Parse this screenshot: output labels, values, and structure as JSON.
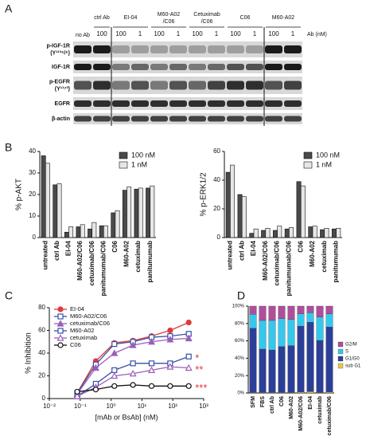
{
  "blot": {
    "panel": "A",
    "no_ab": "no Ab",
    "unit": "Ab (nM)",
    "groups": [
      {
        "name": [
          "ctrl Ab"
        ],
        "doses": [
          100
        ]
      },
      {
        "name": [
          "EI-04"
        ],
        "doses": [
          100,
          1
        ]
      },
      {
        "name": [
          "M60-A02",
          "/C06"
        ],
        "doses": [
          100,
          1
        ]
      },
      {
        "name": [
          "Cetuximab",
          "/C06"
        ],
        "doses": [
          100,
          1
        ]
      },
      {
        "name": [
          "C06"
        ],
        "doses": [
          100,
          1
        ]
      },
      {
        "name": [
          "M60-A02"
        ],
        "doses": [
          100,
          1
        ]
      }
    ],
    "rows": [
      [
        "p-IGF-1R",
        "(Y¹¹³⁵/⁶)"
      ],
      [
        "IGF-1R"
      ],
      [
        "p-EGFR",
        "(Y¹¹⁷³)"
      ],
      [
        "EGFR"
      ],
      [
        "β-actin"
      ]
    ]
  },
  "panels": [
    "B",
    "C",
    "D"
  ],
  "chart_data": [
    {
      "type": "bar",
      "ylabel": "% p-AKT",
      "categories": [
        "untreated",
        "ctrl Ab",
        "EI-04",
        "M60-A02/C06",
        "cetuximab/C06",
        "panitumumab/C06",
        "C06",
        "M60-A02",
        "cetuximab",
        "panitumumab"
      ],
      "series": [
        {
          "name": "100 nM",
          "color": "#4a4a4a",
          "values": [
            38,
            24.5,
            2.5,
            5,
            4,
            5.5,
            11.5,
            22,
            22.5,
            23
          ]
        },
        {
          "name": "1 nM",
          "color": "#e6e6e6",
          "values": [
            34.5,
            25,
            5,
            6,
            7,
            5.5,
            12.5,
            23.5,
            23,
            24
          ]
        }
      ],
      "ylim": [
        0,
        40
      ],
      "yticks": [
        0,
        10,
        20,
        30,
        40
      ]
    },
    {
      "type": "bar",
      "ylabel": "% p-ERK1/2",
      "categories": [
        "untreated",
        "ctrl Ab",
        "EI-04",
        "M60-A02/C06",
        "cetuximab/C06",
        "panitumumab/C06",
        "C06",
        "M60-A02",
        "cetuximab",
        "panitumumab"
      ],
      "series": [
        {
          "name": "100 nM",
          "color": "#4a4a4a",
          "values": [
            45.5,
            30,
            3,
            5,
            5,
            6,
            39,
            7.5,
            5.5,
            6
          ]
        },
        {
          "name": "1 nM",
          "color": "#e6e6e6",
          "values": [
            50.5,
            28.5,
            6,
            6.5,
            8,
            7,
            36,
            8,
            6.5,
            6.5
          ]
        }
      ],
      "ylim": [
        0,
        60
      ],
      "yticks": [
        0,
        20,
        40,
        60
      ]
    },
    {
      "type": "line",
      "ylabel": "% Inhibition",
      "xlabel": "[mAb or BsAb] (nM)",
      "xscale": "log",
      "x": [
        0.08,
        0.32,
        1.28,
        5.12,
        20.5,
        82,
        328
      ],
      "series": [
        {
          "name": "EI-04",
          "color": "#e03a3a",
          "marker": "circle",
          "filled": true,
          "values": [
            5,
            33,
            49,
            51,
            55,
            60,
            67
          ]
        },
        {
          "name": "M60-A02/C06",
          "color": "#3a4fa8",
          "marker": "square",
          "filled": false,
          "values": [
            5,
            30,
            48,
            50,
            54,
            55,
            57
          ]
        },
        {
          "name": "cetuximab/C06",
          "color": "#9a5fb8",
          "marker": "triangle",
          "filled": true,
          "values": [
            4,
            27,
            40,
            47,
            50,
            52,
            53
          ]
        },
        {
          "name": "M60-A02",
          "color": "#3a4fa8",
          "marker": "square",
          "filled": false,
          "values": [
            2,
            13,
            25,
            31,
            31,
            31,
            37
          ]
        },
        {
          "name": "cetuximab",
          "color": "#9a5fb8",
          "marker": "triangle",
          "filled": false,
          "values": [
            2,
            10,
            20,
            22,
            25,
            28,
            27
          ]
        },
        {
          "name": "C06",
          "color": "#111111",
          "marker": "circle",
          "filled": false,
          "values": [
            6,
            8,
            11,
            12,
            11,
            11,
            11
          ]
        }
      ],
      "annotations": [
        "*",
        "**",
        "***"
      ],
      "annotation_color": "#e03a3a",
      "xlim": [
        0.01,
        1000
      ],
      "xticks": [
        {
          "value": 0.01,
          "label": "10⁻²"
        },
        {
          "value": 0.1,
          "label": "10⁻¹"
        },
        {
          "value": 1,
          "label": "10⁰"
        },
        {
          "value": 10,
          "label": "10¹"
        },
        {
          "value": 100,
          "label": "10²"
        },
        {
          "value": 1000,
          "label": "10³"
        }
      ],
      "ylim": [
        0,
        80
      ],
      "yticks": [
        0,
        20,
        40,
        60,
        80
      ]
    },
    {
      "type": "stacked_bar",
      "categories": [
        "SFM",
        "FBS",
        "ctrl Ab",
        "C06",
        "M60-A02",
        "M60-A02/C06",
        "EI-04",
        "cetuximab",
        "cetuximab/C06"
      ],
      "series": [
        {
          "name": "sub G1",
          "color": "#e8c84a",
          "values": [
            0.5,
            0.5,
            0.5,
            0.5,
            0.5,
            1,
            1.5,
            0.5,
            1
          ]
        },
        {
          "name": "G1/G0",
          "color": "#2c3f98",
          "values": [
            74,
            50,
            49,
            53,
            54,
            76,
            80,
            60,
            75
          ]
        },
        {
          "name": "S",
          "color": "#36c8ec",
          "values": [
            16,
            33,
            34,
            32,
            30,
            14,
            11,
            27,
            15
          ]
        },
        {
          "name": "G2/M",
          "color": "#b04e9c",
          "values": [
            9.5,
            16.5,
            16.5,
            14.5,
            15.5,
            9,
            7.5,
            12.5,
            9
          ]
        }
      ],
      "ylim": [
        0,
        100
      ],
      "yticks": [
        {
          "value": 0,
          "label": "0%"
        },
        {
          "value": 20,
          "label": "20%"
        },
        {
          "value": 40,
          "label": "40%"
        },
        {
          "value": 60,
          "label": "60%"
        },
        {
          "value": 80,
          "label": "80%"
        },
        {
          "value": 100,
          "label": "100%"
        }
      ]
    }
  ]
}
